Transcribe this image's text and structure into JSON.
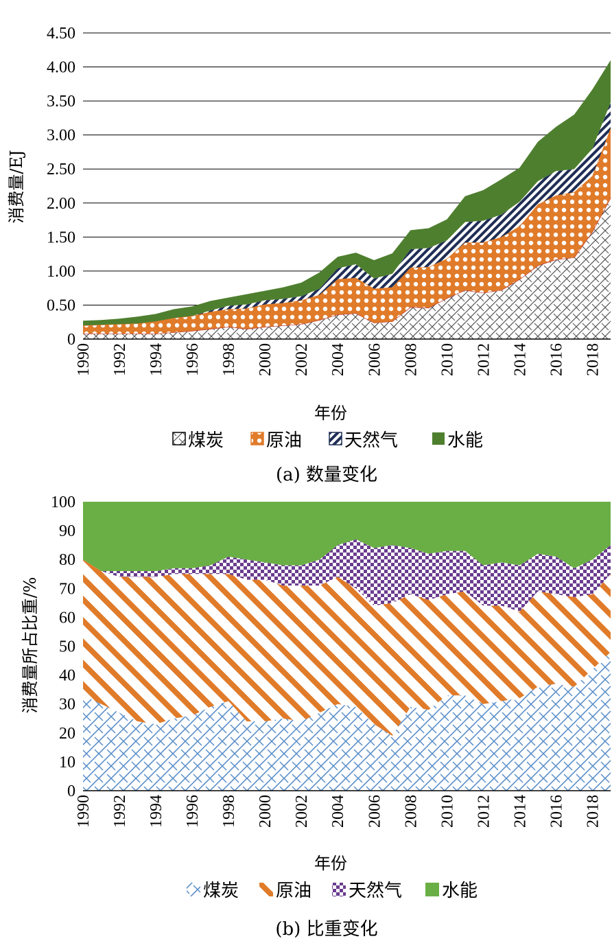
{
  "chart_data": [
    {
      "type": "area",
      "stacked": true,
      "caption": "(a) 数量变化",
      "xlabel": "年份",
      "ylabel": "消费量/EJ",
      "ylim": [
        0,
        4.5
      ],
      "ytick_labels": [
        "0",
        "0.50",
        "1.00",
        "1.50",
        "2.00",
        "2.50",
        "3.00",
        "3.50",
        "4.00",
        "4.50"
      ],
      "xtick_labels": [
        "1990",
        "1992",
        "1994",
        "1996",
        "1998",
        "2000",
        "2002",
        "2004",
        "2006",
        "2008",
        "2010",
        "2012",
        "2014",
        "2016",
        "2018"
      ],
      "x": [
        1990,
        1991,
        1992,
        1993,
        1994,
        1995,
        1996,
        1997,
        1998,
        1999,
        2000,
        2001,
        2002,
        2003,
        2004,
        2005,
        2006,
        2007,
        2008,
        2009,
        2010,
        2011,
        2012,
        2013,
        2014,
        2015,
        2016,
        2017,
        2018,
        2019
      ],
      "grid": true,
      "legend": "bottom",
      "series": [
        {
          "name": "煤炭",
          "color": "#404040",
          "values": [
            0.08,
            0.08,
            0.08,
            0.08,
            0.08,
            0.1,
            0.12,
            0.15,
            0.18,
            0.15,
            0.18,
            0.2,
            0.22,
            0.28,
            0.36,
            0.38,
            0.24,
            0.26,
            0.47,
            0.46,
            0.6,
            0.72,
            0.68,
            0.72,
            0.88,
            1.08,
            1.17,
            1.2,
            1.58,
            2.08
          ]
        },
        {
          "name": "原油",
          "color": "#E07B2A",
          "values": [
            0.12,
            0.13,
            0.14,
            0.15,
            0.18,
            0.21,
            0.22,
            0.25,
            0.26,
            0.3,
            0.33,
            0.33,
            0.35,
            0.37,
            0.52,
            0.52,
            0.5,
            0.5,
            0.58,
            0.6,
            0.58,
            0.7,
            0.74,
            0.78,
            0.78,
            0.9,
            0.94,
            0.96,
            0.82,
            1.02
          ]
        },
        {
          "name": "天然气",
          "color": "#1F2E55",
          "values": [
            0.0,
            0.0,
            0.0,
            0.0,
            0.0,
            0.0,
            0.0,
            0.02,
            0.05,
            0.06,
            0.06,
            0.06,
            0.06,
            0.09,
            0.16,
            0.2,
            0.15,
            0.2,
            0.27,
            0.28,
            0.27,
            0.3,
            0.32,
            0.33,
            0.36,
            0.34,
            0.36,
            0.34,
            0.4,
            0.38
          ]
        },
        {
          "name": "水能",
          "color": "#4E7F2F",
          "values": [
            0.07,
            0.07,
            0.08,
            0.1,
            0.11,
            0.13,
            0.14,
            0.14,
            0.12,
            0.15,
            0.14,
            0.17,
            0.2,
            0.24,
            0.17,
            0.17,
            0.27,
            0.3,
            0.28,
            0.29,
            0.31,
            0.38,
            0.45,
            0.52,
            0.5,
            0.58,
            0.65,
            0.8,
            0.87,
            0.62
          ]
        }
      ]
    },
    {
      "type": "area",
      "stacked": true,
      "caption": "(b) 比重变化",
      "xlabel": "年份",
      "ylabel": "消费量所占比重/%",
      "ylim": [
        0,
        100
      ],
      "ytick_labels": [
        "0",
        "10",
        "20",
        "30",
        "40",
        "50",
        "60",
        "70",
        "80",
        "90",
        "100"
      ],
      "xtick_labels": [
        "1990",
        "1992",
        "1994",
        "1996",
        "1998",
        "2000",
        "2002",
        "2004",
        "2006",
        "2008",
        "2010",
        "2012",
        "2014",
        "2016",
        "2018"
      ],
      "x": [
        1990,
        1991,
        1992,
        1993,
        1994,
        1995,
        1996,
        1997,
        1998,
        1999,
        2000,
        2001,
        2002,
        2003,
        2004,
        2005,
        2006,
        2007,
        2008,
        2009,
        2010,
        2011,
        2012,
        2013,
        2014,
        2015,
        2016,
        2017,
        2018,
        2019
      ],
      "grid": false,
      "legend": "bottom",
      "series": [
        {
          "name": "煤炭",
          "color": "#5B8FC9",
          "values": [
            33,
            30,
            27,
            24,
            23,
            25,
            26,
            29,
            31,
            24,
            24,
            25,
            24,
            27,
            30,
            29,
            23,
            19,
            29,
            28,
            33,
            33,
            30,
            31,
            32,
            36,
            37,
            36,
            42,
            48
          ]
        },
        {
          "name": "原油",
          "color": "#E07B2A",
          "values": [
            47,
            46,
            47,
            50,
            51,
            50,
            49,
            46,
            44,
            49,
            49,
            46,
            47,
            44,
            44,
            41,
            41,
            46,
            39,
            38,
            35,
            36,
            34,
            33,
            30,
            33,
            31,
            31,
            26,
            27
          ]
        },
        {
          "name": "天然气",
          "color": "#6A3D8F",
          "values": [
            0,
            0,
            2,
            2,
            2,
            2,
            2,
            3,
            6,
            7,
            6,
            7,
            7,
            9,
            11,
            17,
            20,
            20,
            16,
            16,
            15,
            14,
            14,
            15,
            16,
            13,
            13,
            10,
            12,
            10
          ]
        },
        {
          "name": "水能",
          "color": "#6AAF45",
          "values": [
            20,
            24,
            24,
            24,
            24,
            23,
            23,
            22,
            19,
            20,
            21,
            22,
            22,
            20,
            15,
            13,
            16,
            15,
            16,
            18,
            17,
            17,
            22,
            21,
            22,
            18,
            19,
            23,
            20,
            15
          ]
        }
      ]
    }
  ]
}
